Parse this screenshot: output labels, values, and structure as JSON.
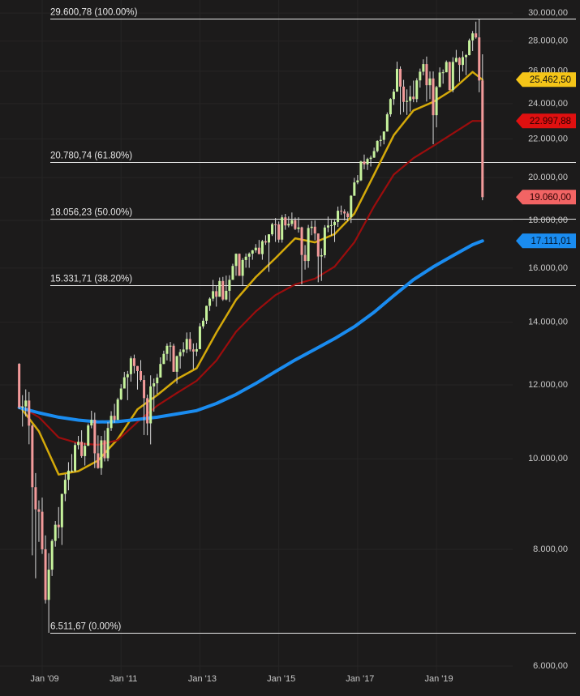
{
  "chart_data": {
    "type": "candlestick",
    "log_scale": true,
    "grid": true,
    "up_color": "#c6f29c",
    "down_color": "#f29a9a",
    "wick_color": "#d8d8d8",
    "x": [
      "2008-06",
      "2008-07",
      "2008-08",
      "2008-09",
      "2008-10",
      "2008-11",
      "2008-12",
      "2009-01",
      "2009-02",
      "2009-03",
      "2009-04",
      "2009-05",
      "2009-06",
      "2009-07",
      "2009-08",
      "2009-09",
      "2009-10",
      "2009-11",
      "2009-12",
      "2010-01",
      "2010-02",
      "2010-03",
      "2010-04",
      "2010-05",
      "2010-06",
      "2010-07",
      "2010-08",
      "2010-09",
      "2010-10",
      "2010-11",
      "2010-12",
      "2011-01",
      "2011-02",
      "2011-03",
      "2011-04",
      "2011-05",
      "2011-06",
      "2011-07",
      "2011-08",
      "2011-09",
      "2011-10",
      "2011-11",
      "2011-12",
      "2012-01",
      "2012-02",
      "2012-03",
      "2012-04",
      "2012-05",
      "2012-06",
      "2012-07",
      "2012-08",
      "2012-09",
      "2012-10",
      "2012-11",
      "2012-12",
      "2013-01",
      "2013-02",
      "2013-03",
      "2013-04",
      "2013-05",
      "2013-06",
      "2013-07",
      "2013-08",
      "2013-09",
      "2013-10",
      "2013-11",
      "2013-12",
      "2014-01",
      "2014-02",
      "2014-03",
      "2014-04",
      "2014-05",
      "2014-06",
      "2014-07",
      "2014-08",
      "2014-09",
      "2014-10",
      "2014-11",
      "2014-12",
      "2015-01",
      "2015-02",
      "2015-03",
      "2015-04",
      "2015-05",
      "2015-06",
      "2015-07",
      "2015-08",
      "2015-09",
      "2015-10",
      "2015-11",
      "2015-12",
      "2016-01",
      "2016-02",
      "2016-03",
      "2016-04",
      "2016-05",
      "2016-06",
      "2016-07",
      "2016-08",
      "2016-09",
      "2016-10",
      "2016-11",
      "2016-12",
      "2017-01",
      "2017-02",
      "2017-03",
      "2017-04",
      "2017-05",
      "2017-06",
      "2017-07",
      "2017-08",
      "2017-09",
      "2017-10",
      "2017-11",
      "2017-12",
      "2018-01",
      "2018-02",
      "2018-03",
      "2018-04",
      "2018-05",
      "2018-06",
      "2018-07",
      "2018-08",
      "2018-09",
      "2018-10",
      "2018-11",
      "2018-12",
      "2019-01",
      "2019-02",
      "2019-03",
      "2019-04",
      "2019-05",
      "2019-06",
      "2019-07",
      "2019-08",
      "2019-09",
      "2019-10",
      "2019-11",
      "2019-12",
      "2020-01",
      "2020-02",
      "2020-03"
    ],
    "open": [
      12638,
      11350,
      11378,
      11544,
      10851,
      9325,
      8829,
      8776,
      8001,
      7063,
      7609,
      8168,
      8500,
      8447,
      9172,
      9496,
      9712,
      9713,
      10345,
      10428,
      10067,
      10325,
      10857,
      11009,
      10137,
      9774,
      10466,
      10015,
      10788,
      11118,
      11006,
      11578,
      11892,
      12226,
      12320,
      12811,
      12570,
      12414,
      12143,
      11614,
      10913,
      11955,
      12046,
      12218,
      12633,
      12952,
      13212,
      13214,
      12393,
      12880,
      13009,
      13091,
      13437,
      13096,
      13026,
      13104,
      13861,
      14054,
      14579,
      14840,
      15116,
      14910,
      15500,
      14810,
      15130,
      15546,
      16086,
      16577,
      15699,
      16322,
      16458,
      16581,
      16717,
      16827,
      16563,
      17098,
      17043,
      17391,
      17828,
      17823,
      17165,
      18133,
      17776,
      17841,
      18011,
      17620,
      17690,
      16528,
      16285,
      17664,
      17720,
      17425,
      16466,
      16517,
      17685,
      17774,
      17787,
      17930,
      18432,
      18401,
      18308,
      18142,
      19124,
      19763,
      19864,
      20812,
      20663,
      20941,
      21009,
      21350,
      21891,
      21948,
      22405,
      23377,
      24272,
      24719,
      26149,
      25029,
      24103,
      24163,
      24416,
      24271,
      25415,
      25965,
      26458,
      25116,
      25538,
      23327,
      24999,
      25916,
      25929,
      26593,
      24815,
      26600,
      26864,
      26403,
      26917,
      27046,
      28051,
      28538,
      28256,
      25409
    ],
    "high": [
      12657,
      11700,
      11867,
      11790,
      10883,
      9654,
      9026,
      9088,
      8280,
      7925,
      8204,
      8578,
      8878,
      9172,
      9630,
      9917,
      10119,
      10406,
      10580,
      10729,
      10402,
      10908,
      11258,
      11205,
      10594,
      10580,
      10720,
      10948,
      11246,
      11452,
      11625,
      12020,
      12391,
      12419,
      12876,
      12929,
      12570,
      12754,
      12284,
      11716,
      12284,
      12188,
      12330,
      12841,
      13055,
      13290,
      13338,
      13280,
      12898,
      13100,
      13330,
      13653,
      13662,
      13290,
      13305,
      13969,
      14150,
      14585,
      14888,
      15542,
      15340,
      15634,
      15658,
      15709,
      15721,
      16174,
      16588,
      16588,
      16398,
      16589,
      16632,
      16736,
      16978,
      17151,
      17153,
      17350,
      17395,
      17895,
      18103,
      17952,
      18244,
      18289,
      18175,
      18351,
      18130,
      18137,
      17722,
      16933,
      17799,
      17978,
      17996,
      17425,
      16795,
      17790,
      18168,
      18014,
      18016,
      18622,
      18668,
      18495,
      18399,
      19153,
      19988,
      20125,
      20851,
      21169,
      21006,
      21113,
      21535,
      21930,
      22179,
      22420,
      23485,
      24327,
      24876,
      26617,
      26307,
      25450,
      24858,
      25087,
      25403,
      25552,
      26168,
      26770,
      26952,
      25980,
      25981,
      25075,
      26242,
      26110,
      26696,
      26620,
      26907,
      27399,
      26917,
      27307,
      27119,
      28175,
      28702,
      29374,
      29569,
      27102
    ],
    "low": [
      11300,
      10827,
      11100,
      10365,
      7882,
      7449,
      8149,
      7910,
      7000,
      6512,
      7491,
      8053,
      8221,
      8087,
      9008,
      9253,
      9678,
      9677,
      10236,
      10026,
      9835,
      10325,
      10781,
      9774,
      9758,
      9614,
      9936,
      9940,
      10711,
      10929,
      11006,
      11555,
      11892,
      11555,
      12094,
      12345,
      11862,
      12097,
      10604,
      10597,
      10362,
      11231,
      11735,
      12218,
      12628,
      12744,
      12710,
      12391,
      12035,
      12492,
      12878,
      12977,
      13031,
      12471,
      12883,
      13104,
      13784,
      13937,
      14397,
      14746,
      14551,
      14910,
      14760,
      14777,
      14720,
      15546,
      15703,
      15699,
      15341,
      16018,
      16015,
      16334,
      16624,
      16563,
      16334,
      16945,
      15855,
      17319,
      17068,
      17037,
      17038,
      17585,
      17693,
      17736,
      17575,
      17465,
      15370,
      15942,
      16013,
      17354,
      17139,
      15451,
      15503,
      16408,
      17484,
      17331,
      17063,
      17713,
      18247,
      17992,
      17959,
      17884,
      19124,
      19677,
      19831,
      20413,
      20379,
      20554,
      20996,
      21279,
      21600,
      21709,
      22405,
      23242,
      23921,
      24741,
      23360,
      23509,
      23344,
      23532,
      24082,
      24078,
      24965,
      25730,
      24123,
      24268,
      21713,
      22638,
      24999,
      25208,
      25929,
      24801,
      24680,
      26571,
      25339,
      25979,
      25744,
      27031,
      27325,
      28169,
      24681,
      18917
    ],
    "close": [
      11350,
      11378,
      11544,
      10851,
      9325,
      8829,
      8776,
      8001,
      7063,
      7609,
      8168,
      8500,
      8447,
      9172,
      9496,
      9712,
      9713,
      10345,
      10428,
      10067,
      10325,
      10857,
      11009,
      10137,
      9774,
      10466,
      10015,
      10788,
      11118,
      11006,
      11578,
      11892,
      12226,
      12320,
      12811,
      12570,
      12414,
      12143,
      11614,
      10913,
      11955,
      12046,
      12218,
      12633,
      12952,
      13212,
      13214,
      12393,
      12880,
      13009,
      13091,
      13437,
      13096,
      13026,
      13104,
      13861,
      14054,
      14579,
      14840,
      15116,
      14910,
      15500,
      14810,
      15130,
      15546,
      16086,
      16577,
      15699,
      16322,
      16458,
      16581,
      16717,
      16827,
      16563,
      17098,
      17043,
      17391,
      17828,
      17823,
      17165,
      18133,
      17776,
      17841,
      18011,
      17620,
      17690,
      16528,
      16285,
      17664,
      17720,
      17425,
      16466,
      16517,
      17685,
      17774,
      17787,
      17930,
      18432,
      18401,
      18308,
      18142,
      19124,
      19763,
      19864,
      20812,
      20663,
      20941,
      21009,
      21350,
      21891,
      21948,
      22405,
      23377,
      24272,
      24719,
      26149,
      25029,
      24103,
      24163,
      24416,
      24271,
      25415,
      25965,
      26458,
      25116,
      25538,
      23327,
      24999,
      25916,
      25929,
      26593,
      24815,
      26600,
      26864,
      26403,
      26917,
      27046,
      28051,
      28538,
      28256,
      25409,
      19060
    ],
    "ma_x": [
      "2008-06",
      "2008-12",
      "2009-06",
      "2009-12",
      "2010-06",
      "2010-12",
      "2011-06",
      "2011-12",
      "2012-06",
      "2012-12",
      "2013-06",
      "2013-12",
      "2014-06",
      "2014-12",
      "2015-06",
      "2015-12",
      "2016-06",
      "2016-12",
      "2017-06",
      "2017-12",
      "2018-06",
      "2018-12",
      "2019-06",
      "2019-12",
      "2020-03"
    ],
    "ma": [
      {
        "color": "#d4a90a",
        "width": 2.5,
        "values": [
          11400,
          10700,
          9620,
          9700,
          9960,
          10500,
          11300,
          11700,
          12170,
          12500,
          13650,
          14800,
          15650,
          16400,
          17220,
          17050,
          17400,
          18300,
          20150,
          22200,
          23600,
          24100,
          24850,
          25950,
          25462.5
        ]
      },
      {
        "color": "#9b0d0d",
        "width": 2.2,
        "values": [
          11400,
          11080,
          10540,
          10390,
          10350,
          10470,
          10950,
          11400,
          11760,
          12120,
          12740,
          13680,
          14380,
          14970,
          15370,
          15590,
          16060,
          17050,
          18630,
          20150,
          20980,
          21620,
          22300,
          23000,
          22997.88
        ]
      },
      {
        "color": "#1a8cf0",
        "width": 4,
        "values": [
          11350,
          11200,
          11080,
          11000,
          10950,
          10960,
          11020,
          11080,
          11170,
          11260,
          11460,
          11720,
          12040,
          12400,
          12760,
          13100,
          13450,
          13850,
          14350,
          14950,
          15550,
          16050,
          16500,
          16950,
          17111.01
        ]
      }
    ],
    "price_tags": [
      {
        "value": 25462.5,
        "label": "25.462,50",
        "color": "#f5c518",
        "text_color": "#111111"
      },
      {
        "value": 22997.88,
        "label": "22.997,88",
        "color": "#e01010",
        "text_color": "#2a0000"
      },
      {
        "value": 19060,
        "label": "19.060,00",
        "color": "#f26464",
        "text_color": "#2a0000"
      },
      {
        "value": 17111.01,
        "label": "17.111,01",
        "color": "#1a8cf0",
        "text_color": "#00142a"
      }
    ],
    "levels": [
      {
        "value": 29600.78,
        "label": "29.600,78 (100.00%)"
      },
      {
        "value": 20780.74,
        "label": "20.780,74 (61.80%)"
      },
      {
        "value": 18056.23,
        "label": "18.056,23 (50.00%)"
      },
      {
        "value": 15331.71,
        "label": "15.331,71 (38.20%)"
      },
      {
        "value": 6511.67,
        "label": "6.511,67 (0.00%)"
      }
    ],
    "xlim": [
      "2008-01",
      "2020-07"
    ],
    "xticks": [
      {
        "value": "2009-01",
        "label": "Jan '09"
      },
      {
        "value": "2011-01",
        "label": "Jan '11"
      },
      {
        "value": "2013-01",
        "label": "Jan '13"
      },
      {
        "value": "2015-01",
        "label": "Jan '15"
      },
      {
        "value": "2017-01",
        "label": "Jan '17"
      },
      {
        "value": "2019-01",
        "label": "Jan '19"
      }
    ],
    "ylim": [
      5731,
      30985
    ],
    "yticks": [
      {
        "value": 6000,
        "label": "6.000,00"
      },
      {
        "value": 8000,
        "label": "8.000,00"
      },
      {
        "value": 10000,
        "label": "10.000,00"
      },
      {
        "value": 12000,
        "label": "12.000,00"
      },
      {
        "value": 14000,
        "label": "14.000,00"
      },
      {
        "value": 16000,
        "label": "16.000,00"
      },
      {
        "value": 18000,
        "label": "18.000,00"
      },
      {
        "value": 20000,
        "label": "20.000,00"
      },
      {
        "value": 22000,
        "label": "22.000,00"
      },
      {
        "value": 24000,
        "label": "24.000,00"
      },
      {
        "value": 26000,
        "label": "26.000,00"
      },
      {
        "value": 28000,
        "label": "28.000,00"
      },
      {
        "value": 30000,
        "label": "30.000,00"
      }
    ]
  }
}
